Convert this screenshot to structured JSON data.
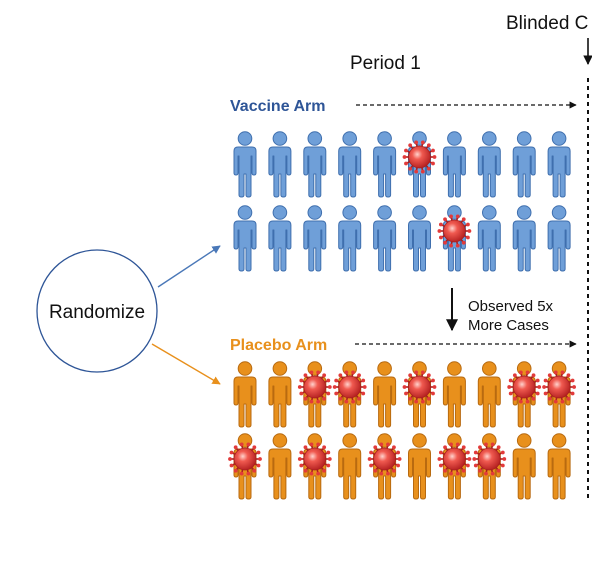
{
  "header": {
    "blinded_label": "Blinded C",
    "period_label": "Period 1"
  },
  "randomize": {
    "label": "Randomize"
  },
  "vaccine_arm": {
    "label": "Vaccine Arm",
    "color": "#2e5597",
    "figure_color": "#6f9fd8",
    "figure_stroke": "#3f6fae",
    "rows": [
      [
        0,
        0,
        0,
        0,
        0,
        1,
        0,
        0,
        0,
        0
      ],
      [
        0,
        0,
        0,
        0,
        0,
        0,
        1,
        0,
        0,
        0
      ]
    ]
  },
  "placebo_arm": {
    "label": "Placebo Arm",
    "color": "#e8901c",
    "figure_color": "#e8901c",
    "figure_stroke": "#b86a10",
    "rows": [
      [
        0,
        0,
        1,
        1,
        0,
        1,
        0,
        0,
        1,
        1
      ],
      [
        1,
        0,
        1,
        0,
        1,
        0,
        1,
        1,
        0,
        0
      ]
    ]
  },
  "observation": {
    "line1": "Observed 5x",
    "line2": "More Cases"
  },
  "colors": {
    "virus": "#e23a3a",
    "virus_dark": "#a81e1e",
    "virus_light": "#ffb0a8",
    "arrow_blue": "#4a78b8",
    "arrow_orange": "#e8901c"
  }
}
